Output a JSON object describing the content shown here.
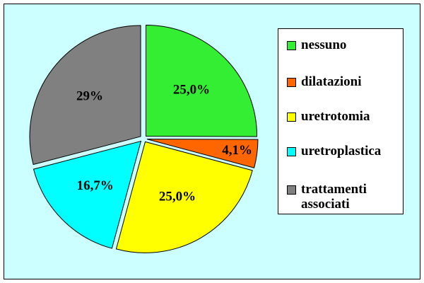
{
  "chart_data": {
    "type": "pie",
    "categories": [
      "nessuno",
      "dilatazioni",
      "uretrotomia",
      "uretroplastica",
      "trattamenti associati"
    ],
    "values": [
      25.0,
      4.1,
      25.0,
      16.7,
      29
    ],
    "value_labels": [
      "25,0%",
      "4,1%",
      "25,0%",
      "16,7%",
      "29%"
    ],
    "colors": [
      "#33ee33",
      "#ff6600",
      "#ffff00",
      "#00ffff",
      "#808080"
    ]
  }
}
